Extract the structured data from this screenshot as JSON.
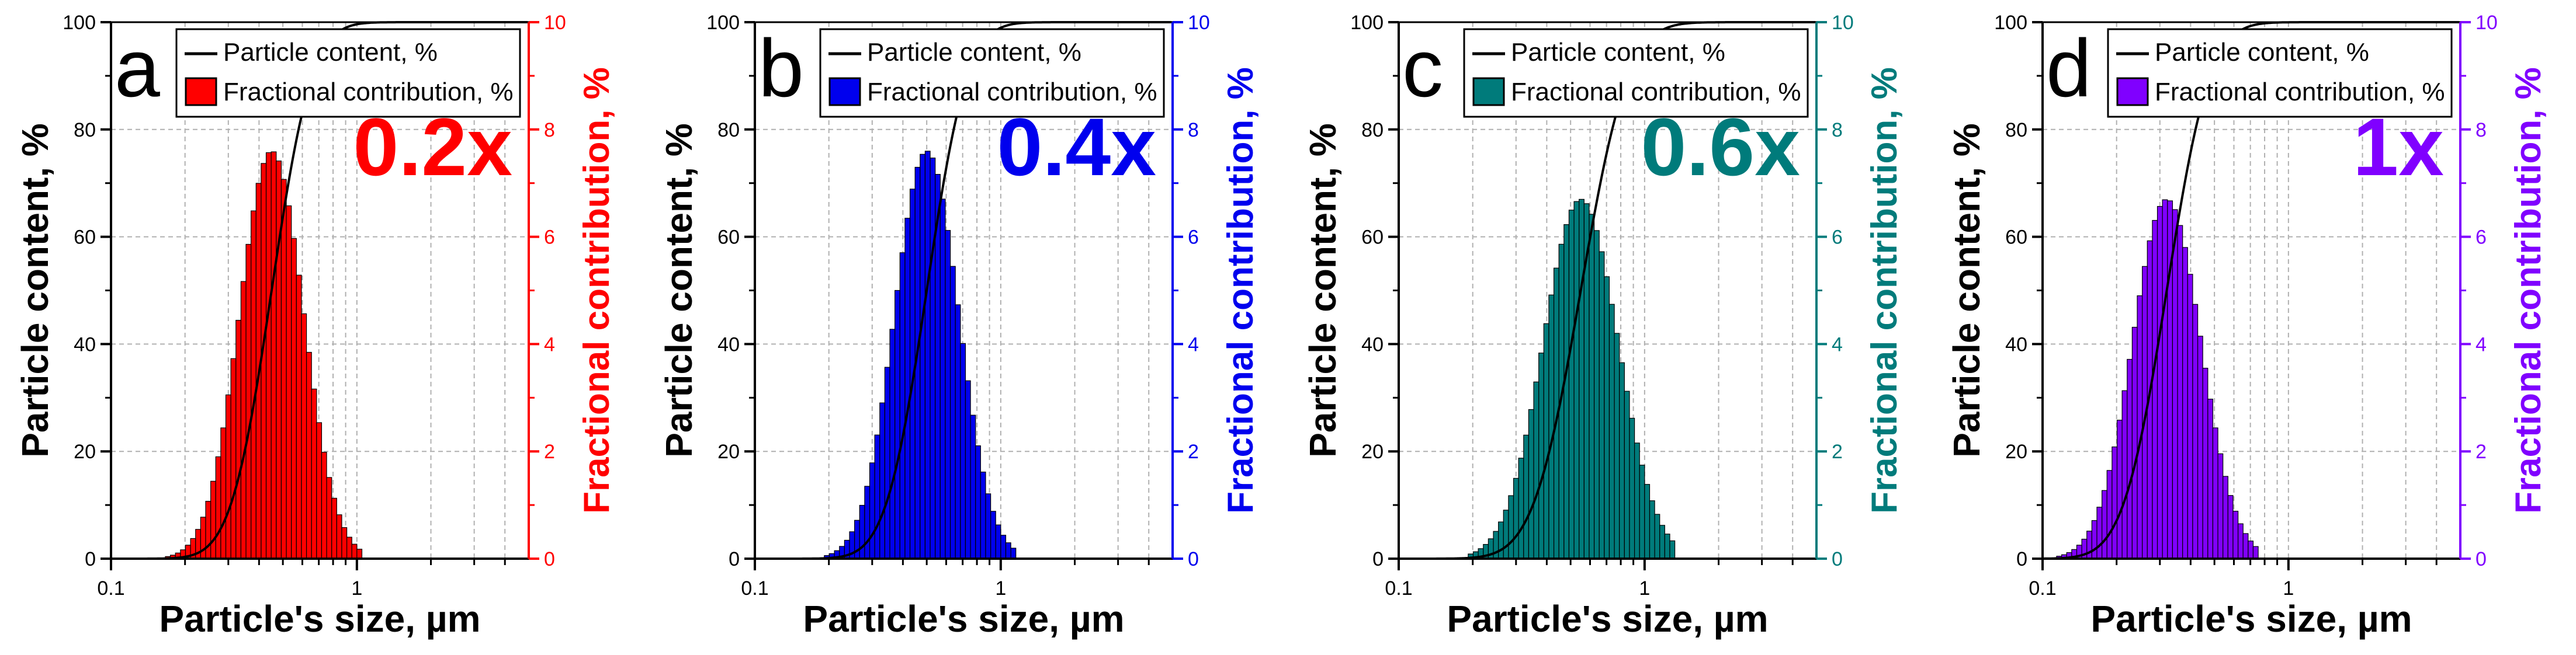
{
  "colors": {
    "axis": "#000000",
    "grid": "#b0b0b0",
    "curve": "#000000"
  },
  "chart_data": [
    {
      "type": "bar",
      "panel_letter": "a",
      "multiplier_label": "0.2x",
      "color": "#ff0000",
      "xlabel": "Particle's size, µm",
      "ylabel_left": "Particle content, %",
      "ylabel_right": "Fractional contribution, %",
      "xscale": "log",
      "xlim": [
        0.1,
        5
      ],
      "xtick_labels": [
        "0.1",
        "1"
      ],
      "ylim_left": [
        0,
        100
      ],
      "yticks_left": [
        "0",
        "20",
        "40",
        "60",
        "80",
        "100"
      ],
      "ylim_right": [
        0,
        10
      ],
      "yticks_right": [
        "0",
        "2",
        "4",
        "6",
        "8",
        "10"
      ],
      "grid": true,
      "legend_position": "top-left",
      "legend": [
        "Particle content, %",
        "Fractional contribution, %"
      ],
      "distribution": {
        "median_um": 0.45,
        "sigma_ln": 0.3,
        "peak_percent": 7.6,
        "min_um": 0.17,
        "max_um": 1.0
      },
      "series": [
        {
          "name": "Particle content, %",
          "kind": "cumulative-line",
          "axis": "left"
        },
        {
          "name": "Fractional contribution, %",
          "kind": "histogram",
          "axis": "right"
        }
      ]
    },
    {
      "type": "bar",
      "panel_letter": "b",
      "multiplier_label": "0.4x",
      "color": "#0000ee",
      "xlabel": "Particle's size, µm",
      "ylabel_left": "Particle content, %",
      "ylabel_right": "Fractional contribution, %",
      "xscale": "log",
      "xlim": [
        0.1,
        5
      ],
      "xtick_labels": [
        "0.1",
        "1"
      ],
      "ylim_left": [
        0,
        100
      ],
      "yticks_left": [
        "0",
        "20",
        "40",
        "60",
        "80",
        "100"
      ],
      "ylim_right": [
        0,
        10
      ],
      "yticks_right": [
        "0",
        "2",
        "4",
        "6",
        "8",
        "10"
      ],
      "grid": true,
      "legend_position": "top-left",
      "legend": [
        "Particle content, %",
        "Fractional contribution, %"
      ],
      "distribution": {
        "median_um": 0.5,
        "sigma_ln": 0.3,
        "peak_percent": 7.6,
        "min_um": 0.2,
        "max_um": 1.15
      },
      "series": [
        {
          "name": "Particle content, %",
          "kind": "cumulative-line",
          "axis": "left"
        },
        {
          "name": "Fractional contribution, %",
          "kind": "histogram",
          "axis": "right"
        }
      ]
    },
    {
      "type": "bar",
      "panel_letter": "c",
      "multiplier_label": "0.6x",
      "color": "#007b7b",
      "xlabel": "Particle's size, µm",
      "ylabel_left": "Particle content, %",
      "ylabel_right": "Fractional contribution, %",
      "xscale": "log",
      "xlim": [
        0.1,
        5
      ],
      "xtick_labels": [
        "0.1",
        "1"
      ],
      "ylim_left": [
        0,
        100
      ],
      "yticks_left": [
        "0",
        "20",
        "40",
        "60",
        "80",
        "100"
      ],
      "ylim_right": [
        0,
        10
      ],
      "yticks_right": [
        "0",
        "2",
        "4",
        "6",
        "8",
        "10"
      ],
      "grid": true,
      "legend_position": "top-left",
      "legend": [
        "Particle content, %",
        "Fractional contribution, %"
      ],
      "distribution": {
        "median_um": 0.55,
        "sigma_ln": 0.35,
        "peak_percent": 6.7,
        "min_um": 0.2,
        "max_um": 1.3
      },
      "series": [
        {
          "name": "Particle content, %",
          "kind": "cumulative-line",
          "axis": "left"
        },
        {
          "name": "Fractional contribution, %",
          "kind": "histogram",
          "axis": "right"
        }
      ]
    },
    {
      "type": "bar",
      "panel_letter": "d",
      "multiplier_label": "1x",
      "color": "#8000ff",
      "xlabel": "Particle's size, µm",
      "ylabel_left": "Particle content, %",
      "ylabel_right": "Fractional contribution, %",
      "xscale": "log",
      "xlim": [
        0.1,
        5
      ],
      "xtick_labels": [
        "0.1",
        "1"
      ],
      "ylim_left": [
        0,
        100
      ],
      "yticks_left": [
        "0",
        "20",
        "40",
        "60",
        "80",
        "100"
      ],
      "ylim_right": [
        0,
        10
      ],
      "yticks_right": [
        "0",
        "2",
        "4",
        "6",
        "8",
        "10"
      ],
      "grid": true,
      "legend_position": "top-left",
      "legend": [
        "Particle content, %",
        "Fractional contribution, %"
      ],
      "distribution": {
        "median_um": 0.32,
        "sigma_ln": 0.32,
        "peak_percent": 6.7,
        "min_um": 0.1,
        "max_um": 0.75
      },
      "series": [
        {
          "name": "Particle content, %",
          "kind": "cumulative-line",
          "axis": "left"
        },
        {
          "name": "Fractional contribution, %",
          "kind": "histogram",
          "axis": "right"
        }
      ]
    }
  ]
}
